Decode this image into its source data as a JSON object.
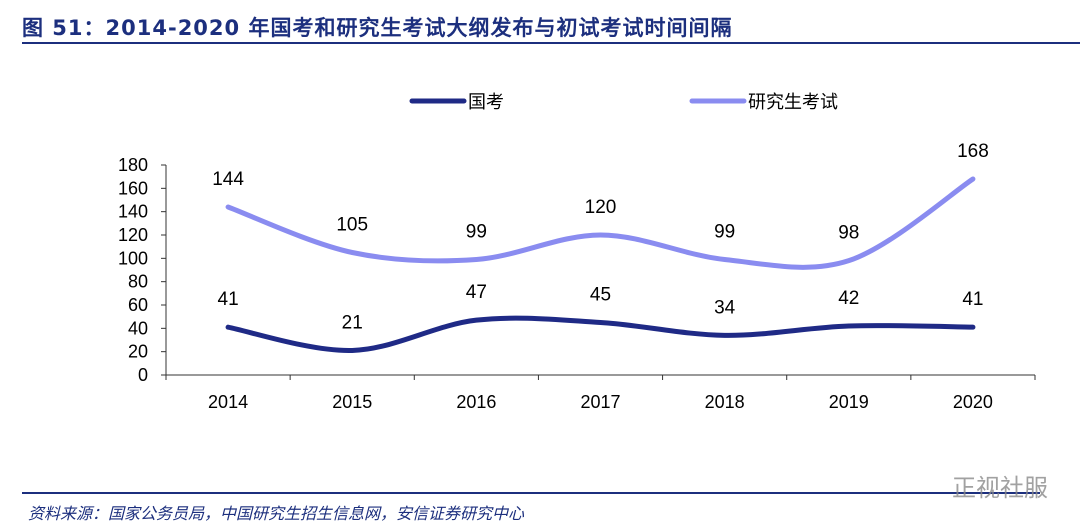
{
  "title": "图 51：2014-2020 年国考和研究生考试大纲发布与初试考试时间间隔",
  "source": "资料来源：国家公务员局，中国研究生招生信息网，安信证券研究中心",
  "watermark": "正视社服",
  "chart_data": {
    "type": "line",
    "categories": [
      "2014",
      "2015",
      "2016",
      "2017",
      "2018",
      "2019",
      "2020"
    ],
    "series": [
      {
        "name": "国考",
        "values": [
          41,
          21,
          47,
          45,
          34,
          42,
          41
        ],
        "color": "#1f2a86"
      },
      {
        "name": "研究生考试",
        "values": [
          144,
          105,
          99,
          120,
          99,
          98,
          168
        ],
        "color": "#8a8cf0"
      }
    ],
    "ylim": [
      0,
      180
    ],
    "yticks": [
      0,
      20,
      40,
      60,
      80,
      100,
      120,
      140,
      160,
      180
    ],
    "grid": false,
    "smooth": true,
    "legend": "top",
    "data_labels": true
  }
}
